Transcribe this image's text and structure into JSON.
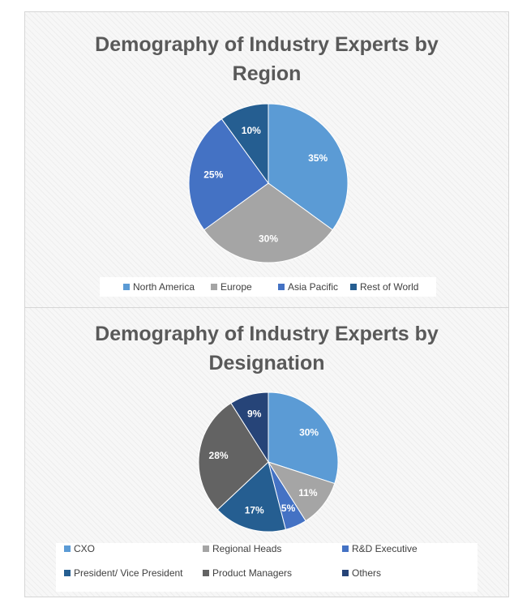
{
  "chart_data": [
    {
      "type": "pie",
      "title": "Demography of Industry Experts by Region",
      "title_lines": [
        "Demography of Industry Experts by",
        "Region"
      ],
      "categories": [
        "North America",
        "Europe",
        "Asia Pacific",
        "Rest of World"
      ],
      "values": [
        35,
        30,
        25,
        10
      ],
      "labels": [
        "35%",
        "30%",
        "25%",
        "10%"
      ],
      "colors": [
        "#5b9bd5",
        "#a5a5a5",
        "#4472c4",
        "#255e91"
      ],
      "legend_position": "bottom"
    },
    {
      "type": "pie",
      "title": "Demography of Industry Experts by Designation",
      "title_lines": [
        "Demography of Industry Experts by",
        "Designation"
      ],
      "categories": [
        "CXO",
        "Regional Heads",
        "R&D Executive",
        "President/ Vice President",
        "Product Managers",
        "Others"
      ],
      "values": [
        30,
        11,
        5,
        17,
        28,
        9
      ],
      "labels": [
        "30%",
        "11%",
        "5%",
        "17%",
        "28%",
        "9%"
      ],
      "colors": [
        "#5b9bd5",
        "#a5a5a5",
        "#4472c4",
        "#255e91",
        "#636363",
        "#264478"
      ],
      "legend_position": "bottom"
    }
  ]
}
